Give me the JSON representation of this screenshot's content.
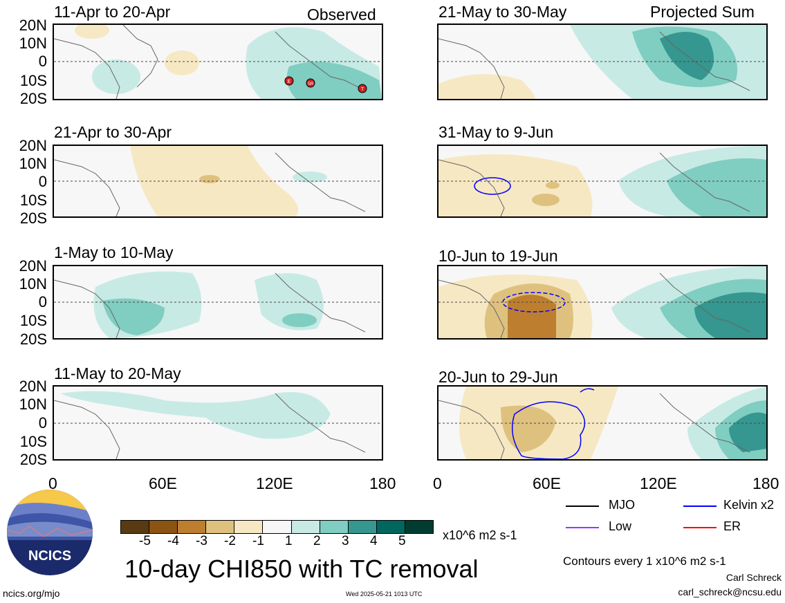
{
  "panels": {
    "left": [
      {
        "title": "11-Apr to 20-Apr",
        "tag": "Observed"
      },
      {
        "title": "21-Apr to 30-Apr",
        "tag": ""
      },
      {
        "title": "1-May to 10-May",
        "tag": ""
      },
      {
        "title": "11-May to 20-May",
        "tag": ""
      }
    ],
    "right": [
      {
        "title": "21-May to 30-May",
        "tag": "Projected Sum"
      },
      {
        "title": "31-May to 9-Jun",
        "tag": ""
      },
      {
        "title": "10-Jun to 19-Jun",
        "tag": ""
      },
      {
        "title": "20-Jun to 29-Jun",
        "tag": ""
      }
    ]
  },
  "lat_labels": [
    "20N",
    "10N",
    "0",
    "10S",
    "20S"
  ],
  "lon_labels": [
    "0",
    "60E",
    "120E",
    "180"
  ],
  "tc_markers": [
    "E",
    "SR",
    "T"
  ],
  "colorbar": {
    "labels": [
      "-5",
      "-4",
      "-3",
      "-2",
      "-1",
      "1",
      "2",
      "3",
      "4",
      "5"
    ],
    "units": "x10^6 m2 s-1",
    "colors": [
      "#5a3a12",
      "#8b5413",
      "#bd7f2f",
      "#dfc17f",
      "#f6e8c3",
      "#f7f7f7",
      "#c7eae5",
      "#80cdc1",
      "#35978f",
      "#01665e",
      "#003c30"
    ]
  },
  "main_title": "10-day CHI850 with TC removal",
  "legend": {
    "mjo": "MJO",
    "kelvin": "Kelvin x2",
    "low": "Low",
    "er": "ER",
    "colors": {
      "mjo": "#000000",
      "kelvin": "#0000ff",
      "low": "#9933ff",
      "er": "#ff0000"
    }
  },
  "contours_note": "Contours every 1 x10^6 m2 s-1",
  "author": "Carl Schreck",
  "email": "carl_schreck@ncsu.edu",
  "site": "ncics.org/mjo",
  "timestamp": "Wed 2025-05-21 1013 UTC",
  "logo_text": "NCICS"
}
